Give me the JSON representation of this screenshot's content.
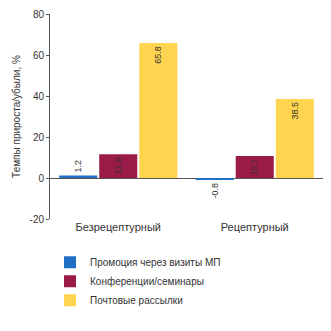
{
  "chart_data": {
    "type": "bar",
    "y_label": "Темпы прироста/убыли, %",
    "categories": [
      "Безрецептурный",
      "Рецептурный"
    ],
    "series": [
      {
        "name": "Промоция через визиты МП",
        "color": "#1f6fc5",
        "values": [
          1.2,
          -0.8
        ]
      },
      {
        "name": "Конференции/семинары",
        "color": "#9b1b48",
        "values": [
          11.6,
          10.7
        ]
      },
      {
        "name": "Почтовые рассылки",
        "color": "#ffd54f",
        "values": [
          65.8,
          38.5
        ]
      }
    ],
    "ylim": [
      -20,
      80
    ],
    "yticks": [
      -20,
      0,
      20,
      40,
      60,
      80
    ],
    "grid": false,
    "legend": "bottom",
    "data_labels": true
  }
}
